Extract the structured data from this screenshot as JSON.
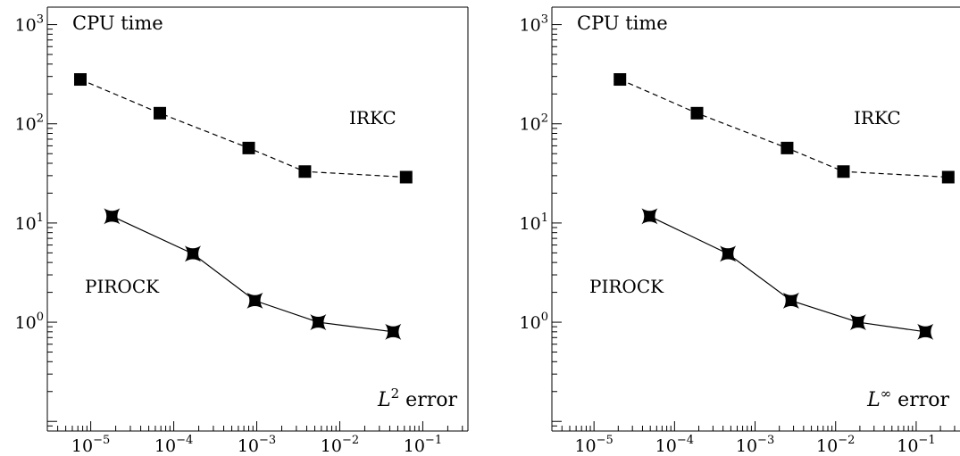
{
  "chart_data": [
    {
      "type": "line",
      "title": "",
      "xlabel": "L^2 error",
      "ylabel": "CPU time",
      "xscale": "log",
      "yscale": "log",
      "xlim": [
        3e-06,
        0.35
      ],
      "ylim": [
        0.08,
        1500
      ],
      "x_ticks": [
        "10^-5",
        "10^-4",
        "10^-3",
        "10^-2",
        "10^-1"
      ],
      "y_ticks": [
        "10^0",
        "10^1",
        "10^2",
        "10^3"
      ],
      "corner_label": "CPU time",
      "axis_label_text": "error",
      "axis_label_symbol": "L",
      "axis_label_sup": "2",
      "series": [
        {
          "name": "IRKC",
          "marker": "square",
          "line": "dashed",
          "x": [
            7.5e-06,
            6.8e-05,
            0.0008,
            0.0038,
            0.063
          ],
          "y": [
            280,
            128,
            57,
            33,
            29
          ]
        },
        {
          "name": "PIROCK",
          "marker": "star",
          "line": "solid",
          "x": [
            1.8e-05,
            0.00017,
            0.00095,
            0.0055,
            0.044
          ],
          "y": [
            11.7,
            4.9,
            1.65,
            1.0,
            0.8
          ]
        }
      ],
      "series_labels": [
        "IRKC",
        "PIROCK"
      ],
      "grid": false
    },
    {
      "type": "line",
      "title": "",
      "xlabel": "L^∞ error",
      "ylabel": "CPU time",
      "xscale": "log",
      "yscale": "log",
      "xlim": [
        3e-06,
        0.35
      ],
      "ylim": [
        0.08,
        1500
      ],
      "x_ticks": [
        "10^-5",
        "10^-4",
        "10^-3",
        "10^-2",
        "10^-1"
      ],
      "y_ticks": [
        "10^0",
        "10^1",
        "10^2",
        "10^3"
      ],
      "corner_label": "CPU time",
      "axis_label_text": "error",
      "axis_label_symbol": "L",
      "axis_label_sup": "∞",
      "series": [
        {
          "name": "IRKC",
          "marker": "square",
          "line": "dashed",
          "x": [
            2.1e-05,
            0.00019,
            0.0025,
            0.0125,
            0.25
          ],
          "y": [
            280,
            128,
            57,
            33,
            29
          ]
        },
        {
          "name": "PIROCK",
          "marker": "star",
          "line": "solid",
          "x": [
            4.9e-05,
            0.00046,
            0.0028,
            0.019,
            0.13
          ],
          "y": [
            11.7,
            4.9,
            1.65,
            1.0,
            0.8
          ]
        }
      ],
      "series_labels": [
        "IRKC",
        "PIROCK"
      ],
      "grid": false
    }
  ]
}
